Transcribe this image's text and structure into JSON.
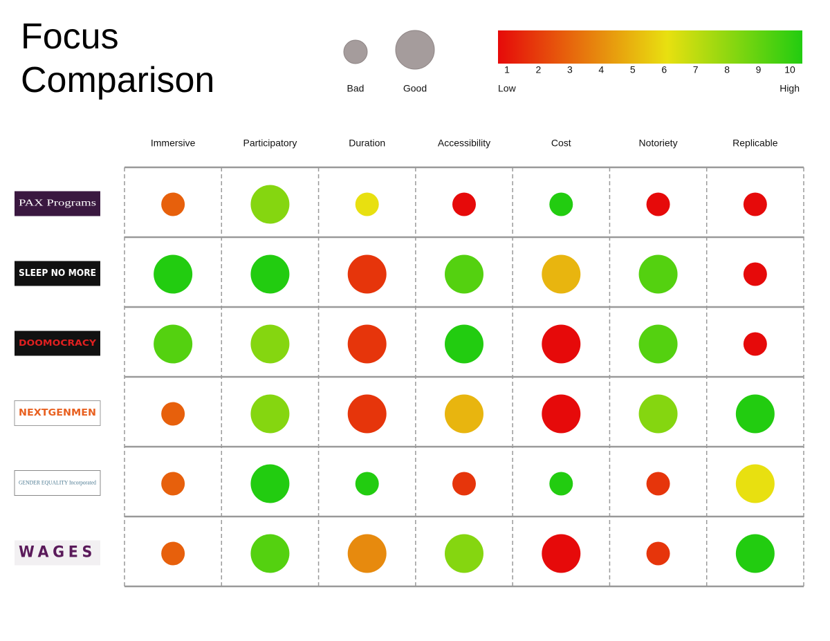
{
  "chart_data": {
    "type": "bubble-matrix",
    "title": "Focus Comparison",
    "size_legend": [
      "Bad",
      "Good"
    ],
    "color_legend": {
      "lim": [
        1,
        10
      ],
      "ticks": [
        1,
        2,
        3,
        4,
        5,
        6,
        7,
        8,
        9,
        10
      ],
      "low": "Low",
      "high": "High",
      "stops": [
        {
          "value": 1,
          "color": "#e60a0a"
        },
        {
          "value": 6,
          "color": "#e8e010"
        },
        {
          "value": 10,
          "color": "#22cc10"
        }
      ]
    },
    "columns": [
      "Immersive",
      "Participatory",
      "Duration",
      "Accessibility",
      "Cost",
      "Notoriety",
      "Replicable"
    ],
    "rows": [
      {
        "name": "PAX Programs",
        "scores": [
          3,
          8,
          6,
          1,
          10,
          1,
          1
        ],
        "ratings": [
          "Bad",
          "Good",
          "Bad",
          "Bad",
          "Bad",
          "Bad",
          "Bad"
        ]
      },
      {
        "name": "SLEEP NO MORE",
        "scores": [
          10,
          10,
          2,
          9,
          5,
          9,
          1
        ],
        "ratings": [
          "Good",
          "Good",
          "Good",
          "Good",
          "Good",
          "Good",
          "Bad"
        ]
      },
      {
        "name": "DOOMOCRACY",
        "scores": [
          9,
          8,
          2,
          10,
          1,
          9,
          1
        ],
        "ratings": [
          "Good",
          "Good",
          "Good",
          "Good",
          "Good",
          "Good",
          "Bad"
        ]
      },
      {
        "name": "NEXTGENMEN",
        "scores": [
          3,
          8,
          2,
          5,
          1,
          8,
          10
        ],
        "ratings": [
          "Bad",
          "Good",
          "Good",
          "Good",
          "Good",
          "Good",
          "Good"
        ]
      },
      {
        "name": "GENDER EQUALITY Incorporated",
        "scores": [
          3,
          10,
          10,
          2,
          10,
          2,
          6
        ],
        "ratings": [
          "Bad",
          "Good",
          "Bad",
          "Bad",
          "Bad",
          "Bad",
          "Good"
        ]
      },
      {
        "name": "WAGES",
        "scores": [
          3,
          9,
          4,
          8,
          1,
          2,
          10
        ],
        "ratings": [
          "Bad",
          "Good",
          "Good",
          "Good",
          "Good",
          "Bad",
          "Good"
        ]
      }
    ]
  }
}
